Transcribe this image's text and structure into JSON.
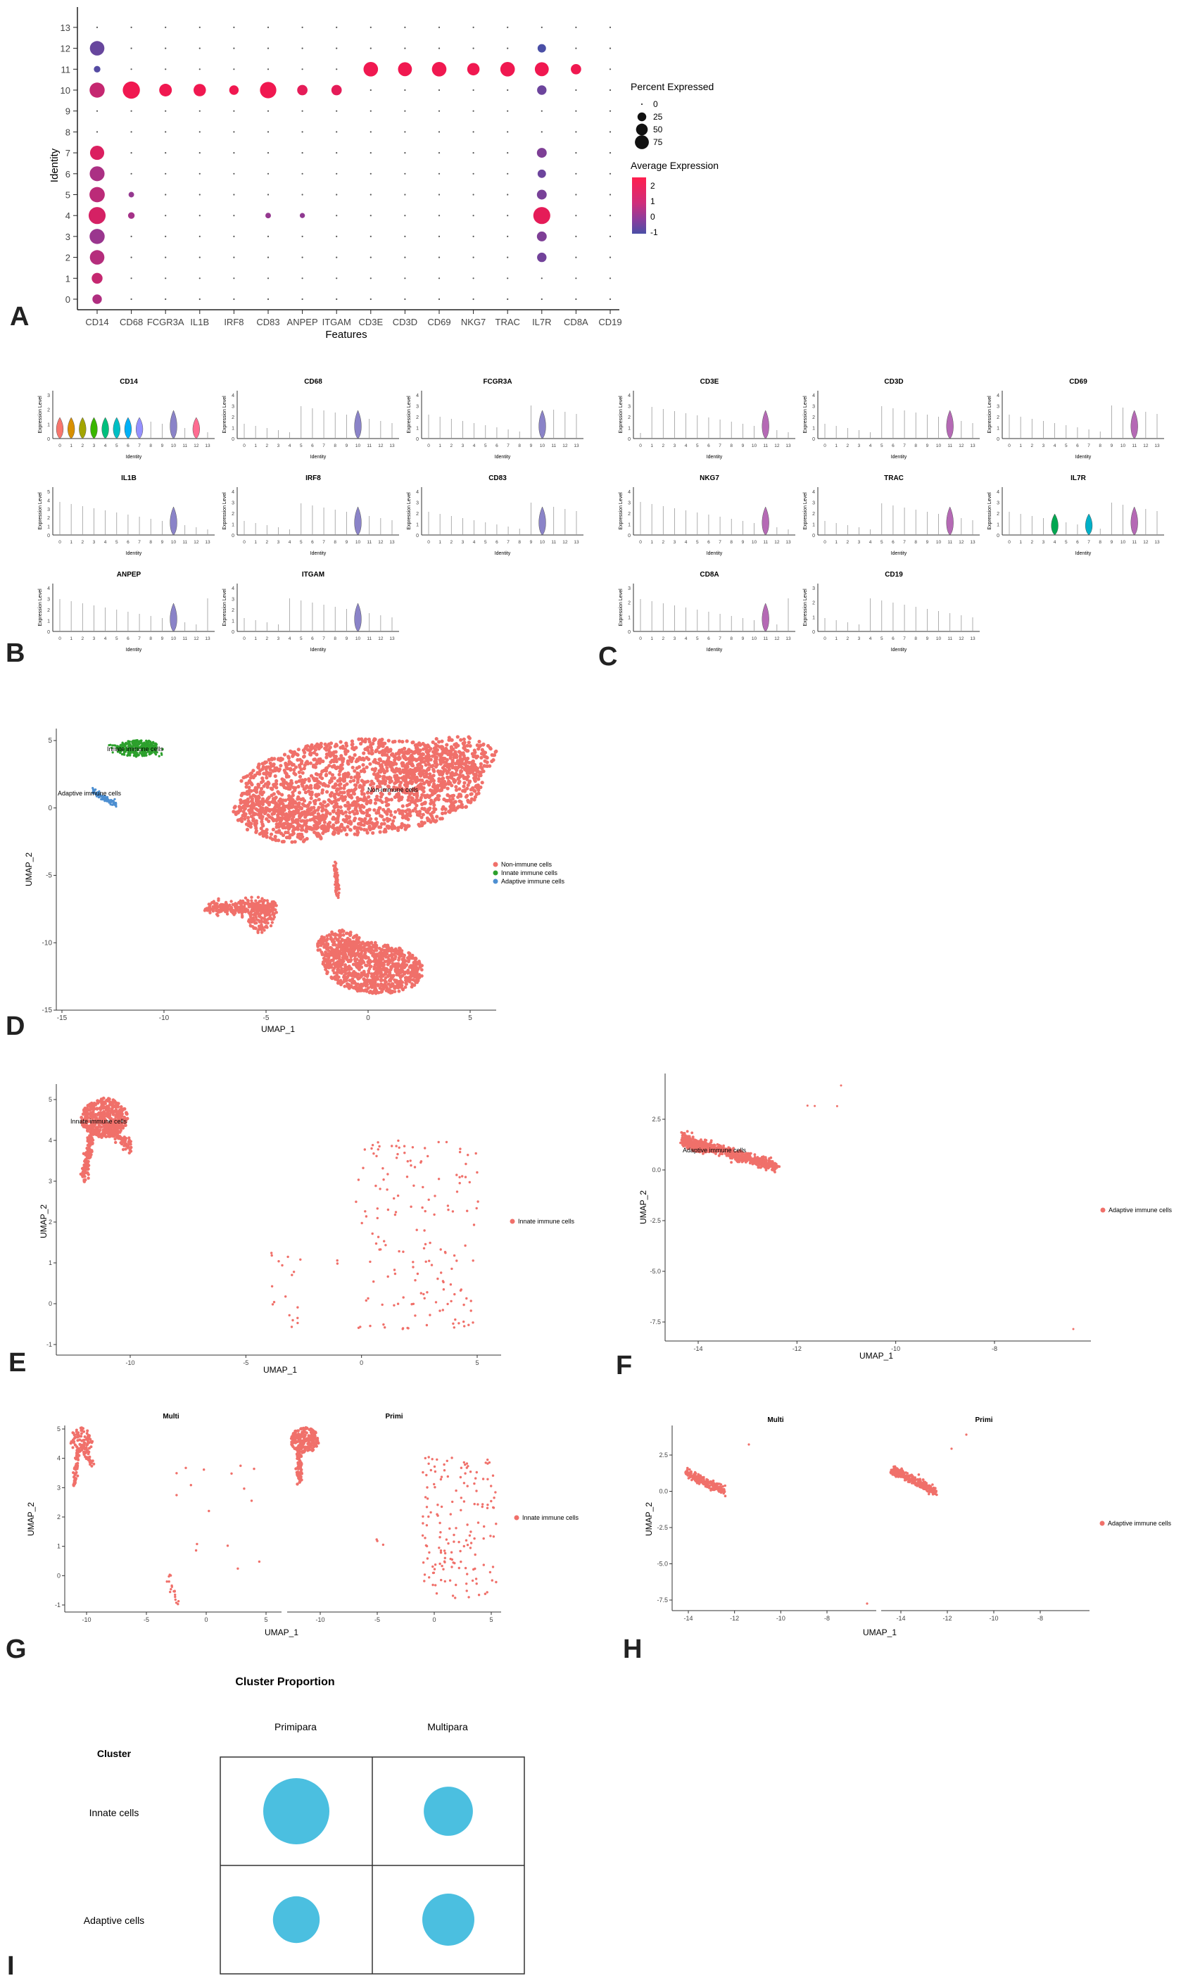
{
  "panel_letters": [
    "A",
    "B",
    "C",
    "D",
    "E",
    "F",
    "G",
    "H",
    "I"
  ],
  "colors": {
    "expr_high": "#e8175d",
    "expr_mid": "#c03a8a",
    "expr_low": "#4a4fa6",
    "umap_point": "#f0706a",
    "innate_green": "#2ca02c",
    "adaptive_blue": "#4d8fd1",
    "bubble": "#4bbfe0"
  },
  "chart_data": [
    {
      "id": "A",
      "type": "scatter",
      "subtype": "dot-plot",
      "xlabel": "Features",
      "ylabel": "Identity",
      "categories": [
        "CD14",
        "CD68",
        "FCGR3A",
        "IL1B",
        "IRF8",
        "CD83",
        "ANPEP",
        "ITGAM",
        "CD3E",
        "CD3D",
        "CD69",
        "NKG7",
        "TRAC",
        "IL7R",
        "CD8A",
        "CD19"
      ],
      "identities": [
        "0",
        "1",
        "2",
        "3",
        "4",
        "5",
        "6",
        "7",
        "8",
        "9",
        "10",
        "11",
        "12",
        "13"
      ],
      "legend": {
        "size_title": "Percent Expressed",
        "size_values": [
          "0",
          "25",
          "50",
          "75"
        ],
        "color_title": "Average Expression",
        "color_values": [
          "2",
          "1",
          "0",
          "-1"
        ]
      },
      "points": [
        {
          "feature": "CD14",
          "identity": 0,
          "pct": 20,
          "avg": 0.8
        },
        {
          "feature": "CD14",
          "identity": 1,
          "pct": 28,
          "avg": 1.2
        },
        {
          "feature": "CD14",
          "identity": 2,
          "pct": 55,
          "avg": 0.9
        },
        {
          "feature": "CD14",
          "identity": 3,
          "pct": 60,
          "avg": 0.4
        },
        {
          "feature": "CD14",
          "identity": 4,
          "pct": 78,
          "avg": 1.5
        },
        {
          "feature": "CD14",
          "identity": 5,
          "pct": 62,
          "avg": 1.0
        },
        {
          "feature": "CD14",
          "identity": 6,
          "pct": 58,
          "avg": 0.7
        },
        {
          "feature": "CD14",
          "identity": 7,
          "pct": 52,
          "avg": 1.6
        },
        {
          "feature": "CD14",
          "identity": 10,
          "pct": 60,
          "avg": 1.2
        },
        {
          "feature": "CD14",
          "identity": 11,
          "pct": 8,
          "avg": -0.8
        },
        {
          "feature": "CD14",
          "identity": 12,
          "pct": 55,
          "avg": -0.5
        },
        {
          "feature": "CD68",
          "identity": 4,
          "pct": 8,
          "avg": 0.6
        },
        {
          "feature": "CD68",
          "identity": 5,
          "pct": 5,
          "avg": 0.3
        },
        {
          "feature": "CD68",
          "identity": 10,
          "pct": 80,
          "avg": 2.0
        },
        {
          "feature": "FCGR3A",
          "identity": 10,
          "pct": 40,
          "avg": 2.0
        },
        {
          "feature": "IL1B",
          "identity": 10,
          "pct": 38,
          "avg": 2.0
        },
        {
          "feature": "IRF8",
          "identity": 10,
          "pct": 20,
          "avg": 2.0
        },
        {
          "feature": "CD83",
          "identity": 10,
          "pct": 72,
          "avg": 2.0
        },
        {
          "feature": "CD83",
          "identity": 4,
          "pct": 5,
          "avg": 0.3
        },
        {
          "feature": "ANPEP",
          "identity": 10,
          "pct": 25,
          "avg": 1.8
        },
        {
          "feature": "ANPEP",
          "identity": 4,
          "pct": 4,
          "avg": 0.2
        },
        {
          "feature": "ITGAM",
          "identity": 10,
          "pct": 25,
          "avg": 1.8
        },
        {
          "feature": "CD3E",
          "identity": 11,
          "pct": 55,
          "avg": 2.0
        },
        {
          "feature": "CD3D",
          "identity": 11,
          "pct": 50,
          "avg": 2.0
        },
        {
          "feature": "CD69",
          "identity": 11,
          "pct": 55,
          "avg": 2.0
        },
        {
          "feature": "NKG7",
          "identity": 11,
          "pct": 38,
          "avg": 2.0
        },
        {
          "feature": "TRAC",
          "identity": 11,
          "pct": 55,
          "avg": 2.0
        },
        {
          "feature": "IL7R",
          "identity": 2,
          "pct": 20,
          "avg": -0.3
        },
        {
          "feature": "IL7R",
          "identity": 3,
          "pct": 22,
          "avg": -0.1
        },
        {
          "feature": "IL7R",
          "identity": 4,
          "pct": 78,
          "avg": 1.8
        },
        {
          "feature": "IL7R",
          "identity": 5,
          "pct": 22,
          "avg": -0.2
        },
        {
          "feature": "IL7R",
          "identity": 6,
          "pct": 15,
          "avg": -0.4
        },
        {
          "feature": "IL7R",
          "identity": 7,
          "pct": 22,
          "avg": -0.1
        },
        {
          "feature": "IL7R",
          "identity": 10,
          "pct": 20,
          "avg": -0.4
        },
        {
          "feature": "IL7R",
          "identity": 11,
          "pct": 50,
          "avg": 2.0
        },
        {
          "feature": "IL7R",
          "identity": 12,
          "pct": 15,
          "avg": -1.0
        },
        {
          "feature": "CD8A",
          "identity": 11,
          "pct": 25,
          "avg": 2.0
        }
      ]
    },
    {
      "id": "B",
      "type": "violin",
      "ylabel": "Expression Level",
      "xlabel": "Identity",
      "panels": [
        {
          "title": "CD14",
          "yticks": [
            "0",
            "1",
            "2",
            "3"
          ],
          "highlight": [
            0,
            1,
            2,
            3,
            4,
            5,
            6,
            7,
            10,
            12
          ]
        },
        {
          "title": "CD68",
          "yticks": [
            "0",
            "1",
            "2",
            "3",
            "4"
          ],
          "highlight": [
            10
          ]
        },
        {
          "title": "FCGR3A",
          "yticks": [
            "0",
            "1",
            "2",
            "3",
            "4"
          ],
          "highlight": [
            10
          ]
        },
        {
          "title": "IL1B",
          "yticks": [
            "0",
            "1",
            "2",
            "3",
            "4",
            "5"
          ],
          "highlight": [
            10
          ]
        },
        {
          "title": "IRF8",
          "yticks": [
            "0",
            "1",
            "2",
            "3",
            "4"
          ],
          "highlight": [
            10
          ]
        },
        {
          "title": "CD83",
          "yticks": [
            "0",
            "1",
            "2",
            "3",
            "4"
          ],
          "highlight": [
            10
          ]
        },
        {
          "title": "ANPEP",
          "yticks": [
            "0",
            "1",
            "2",
            "3",
            "4"
          ],
          "highlight": [
            10
          ]
        },
        {
          "title": "ITGAM",
          "yticks": [
            "0",
            "1",
            "2",
            "3",
            "4"
          ],
          "highlight": [
            10
          ]
        }
      ]
    },
    {
      "id": "C",
      "type": "violin",
      "ylabel": "Expression Level",
      "xlabel": "Identity",
      "panels": [
        {
          "title": "CD3E",
          "yticks": [
            "0",
            "1",
            "2",
            "3",
            "4"
          ],
          "highlight": [
            11
          ]
        },
        {
          "title": "CD3D",
          "yticks": [
            "0",
            "1",
            "2",
            "3",
            "4"
          ],
          "highlight": [
            11
          ]
        },
        {
          "title": "CD69",
          "yticks": [
            "0",
            "1",
            "2",
            "3",
            "4"
          ],
          "highlight": [
            11
          ]
        },
        {
          "title": "NKG7",
          "yticks": [
            "0",
            "1",
            "2",
            "3",
            "4"
          ],
          "highlight": [
            11
          ]
        },
        {
          "title": "TRAC",
          "yticks": [
            "0",
            "1",
            "2",
            "3",
            "4"
          ],
          "highlight": [
            11
          ]
        },
        {
          "title": "IL7R",
          "yticks": [
            "0",
            "1",
            "2",
            "3",
            "4"
          ],
          "highlight": [
            4,
            7,
            11
          ]
        },
        {
          "title": "CD8A",
          "yticks": [
            "0",
            "1",
            "2",
            "3"
          ],
          "highlight": [
            11
          ]
        },
        {
          "title": "CD19",
          "yticks": [
            "0",
            "1",
            "2",
            "3"
          ],
          "highlight": []
        }
      ]
    },
    {
      "id": "D",
      "type": "scatter",
      "xlabel": "UMAP_1",
      "ylabel": "UMAP_2",
      "xlim": [
        -15,
        6
      ],
      "ylim": [
        -15,
        6
      ],
      "xticks": [
        "-15",
        "-10",
        "-5",
        "0",
        "5"
      ],
      "yticks": [
        "5",
        "0",
        "-5",
        "-10",
        "-15"
      ],
      "legend": [
        "Non-immune cells",
        "Innate immune cells",
        "Adaptive immune cells"
      ],
      "annotations": [
        "Innate immune cells",
        "Adaptive immune cells",
        "Non-immune cells"
      ]
    },
    {
      "id": "E",
      "type": "scatter",
      "xlabel": "UMAP_1",
      "ylabel": "UMAP_2",
      "xticks": [
        "-10",
        "-5",
        "0",
        "5"
      ],
      "yticks": [
        "5",
        "4",
        "3",
        "2",
        "1",
        "0",
        "-1"
      ],
      "legend": [
        "Innate immune cells"
      ],
      "annotations": [
        "Innate immune cells"
      ]
    },
    {
      "id": "F",
      "type": "scatter",
      "xlabel": "UMAP_1",
      "ylabel": "UMAP_2",
      "xticks": [
        "-14",
        "-12",
        "-10",
        "-8"
      ],
      "yticks": [
        "2.5",
        "0.0",
        "-2.5",
        "-5.0",
        "-7.5"
      ],
      "legend": [
        "Adaptive immune cells"
      ],
      "annotations": [
        "Adaptive immune cells"
      ]
    },
    {
      "id": "G",
      "type": "scatter",
      "xlabel": "UMAP_1",
      "ylabel": "UMAP_2",
      "facets": [
        "Multi",
        "Primi"
      ],
      "xticks_left": [
        "-10",
        "-5",
        "0",
        "5"
      ],
      "xticks_right": [
        "-10",
        "-5",
        "0",
        "5"
      ],
      "yticks": [
        "5",
        "4",
        "3",
        "2",
        "1",
        "0",
        "-1"
      ],
      "legend": [
        "Innate immune cells"
      ]
    },
    {
      "id": "H",
      "type": "scatter",
      "xlabel": "UMAP_1",
      "ylabel": "UMAP_2",
      "facets": [
        "Multi",
        "Primi"
      ],
      "xticks_left": [
        "-14",
        "-12",
        "-10",
        "-8"
      ],
      "xticks_right": [
        "-14",
        "-12",
        "-10",
        "-8"
      ],
      "yticks": [
        "2.5",
        "0.0",
        "-2.5",
        "-5.0",
        "-7.5"
      ],
      "legend": [
        "Adaptive immune cells"
      ]
    },
    {
      "id": "I",
      "type": "scatter",
      "subtype": "bubble-matrix",
      "title": "Cluster Proportion",
      "row_header": "Cluster",
      "columns": [
        "Primipara",
        "Multipara"
      ],
      "rows": [
        "Innate cells",
        "Adaptive cells"
      ],
      "relative_size": [
        [
          1.0,
          0.55
        ],
        [
          0.5,
          0.62
        ]
      ]
    }
  ]
}
